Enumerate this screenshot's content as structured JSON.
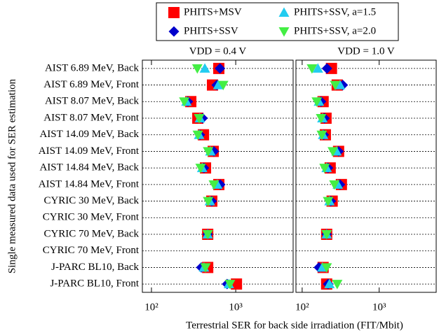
{
  "chart_data": [
    {
      "type": "scatter",
      "title": "VDD = 0.4 V",
      "y_label": "Single measured data used for SER estimation",
      "x_label": "Terrestrial SER for back side irradiation (FIT/Mbit)",
      "log_x": true,
      "categories": [
        "AIST 6.89 MeV, Back",
        "AIST 6.89 MeV, Front",
        "AIST 8.07 MeV, Back",
        "AIST 8.07 MeV, Front",
        "AIST 14.09 MeV, Back",
        "AIST 14.09 MeV, Front",
        "AIST 14.84 MeV, Back",
        "AIST 14.84 MeV, Front",
        "CYRIC 30 MeV, Back",
        "CYRIC 30 MeV, Front",
        "CYRIC 70 MeV, Back",
        "CYRIC 70 MeV, Front",
        "J-PARC BL10, Back",
        "J-PARC BL10, Front"
      ],
      "xlim": [
        78,
        4800
      ],
      "xticks": [
        {
          "value": 100,
          "label": "10²"
        },
        {
          "value": 1000,
          "label": "10³"
        }
      ],
      "series": [
        {
          "name": "PHITS+MSV",
          "color": "#ff0000",
          "marker": "square",
          "values": [
            630,
            530,
            293,
            355,
            414,
            541,
            438,
            630,
            520,
            null,
            465,
            null,
            465,
            1020
          ]
        },
        {
          "name": "PHITS+SSV",
          "color": "#0000cc",
          "marker": "diamond",
          "values": [
            650,
            595,
            271,
            405,
            376,
            550,
            420,
            655,
            520,
            null,
            465,
            null,
            390,
            790
          ]
        },
        {
          "name": "PHITS+SSV, a=1.5",
          "color": "#22ccf0",
          "marker": "triangle-up",
          "values": [
            430,
            620,
            260,
            375,
            368,
            500,
            400,
            605,
            493,
            null,
            465,
            null,
            420,
            830
          ]
        },
        {
          "name": "PHITS+SSV, a=2.0",
          "color": "#44ee44",
          "marker": "triangle-down",
          "values": [
            350,
            710,
            245,
            368,
            355,
            470,
            383,
            550,
            470,
            null,
            465,
            null,
            438,
            855
          ]
        }
      ]
    },
    {
      "type": "scatter",
      "title": "VDD = 1.0 V",
      "log_x": true,
      "xlim": [
        83,
        5500
      ],
      "xticks": [
        {
          "value": 100,
          "label": "10²"
        },
        {
          "value": 1000,
          "label": "10³"
        }
      ],
      "series": [
        {
          "color": "#ff0000",
          "marker": "square",
          "values": [
            240,
            285,
            187,
            204,
            200,
            297,
            231,
            323,
            245,
            null,
            208,
            null,
            187,
            208
          ]
        },
        {
          "color": "#0000cc",
          "marker": "diamond",
          "values": [
            210,
            337,
            176,
            195,
            191,
            297,
            217,
            310,
            236,
            null,
            208,
            null,
            165,
            217
          ]
        },
        {
          "color": "#22ccf0",
          "marker": "triangle-up",
          "values": [
            160,
            310,
            165,
            183,
            187,
            279,
            208,
            290,
            226,
            null,
            208,
            null,
            183,
            226
          ]
        },
        {
          "color": "#44ee44",
          "marker": "triangle-down",
          "values": [
            134,
            268,
            155,
            176,
            180,
            250,
            195,
            262,
            217,
            null,
            208,
            null,
            208,
            285
          ]
        }
      ]
    }
  ]
}
